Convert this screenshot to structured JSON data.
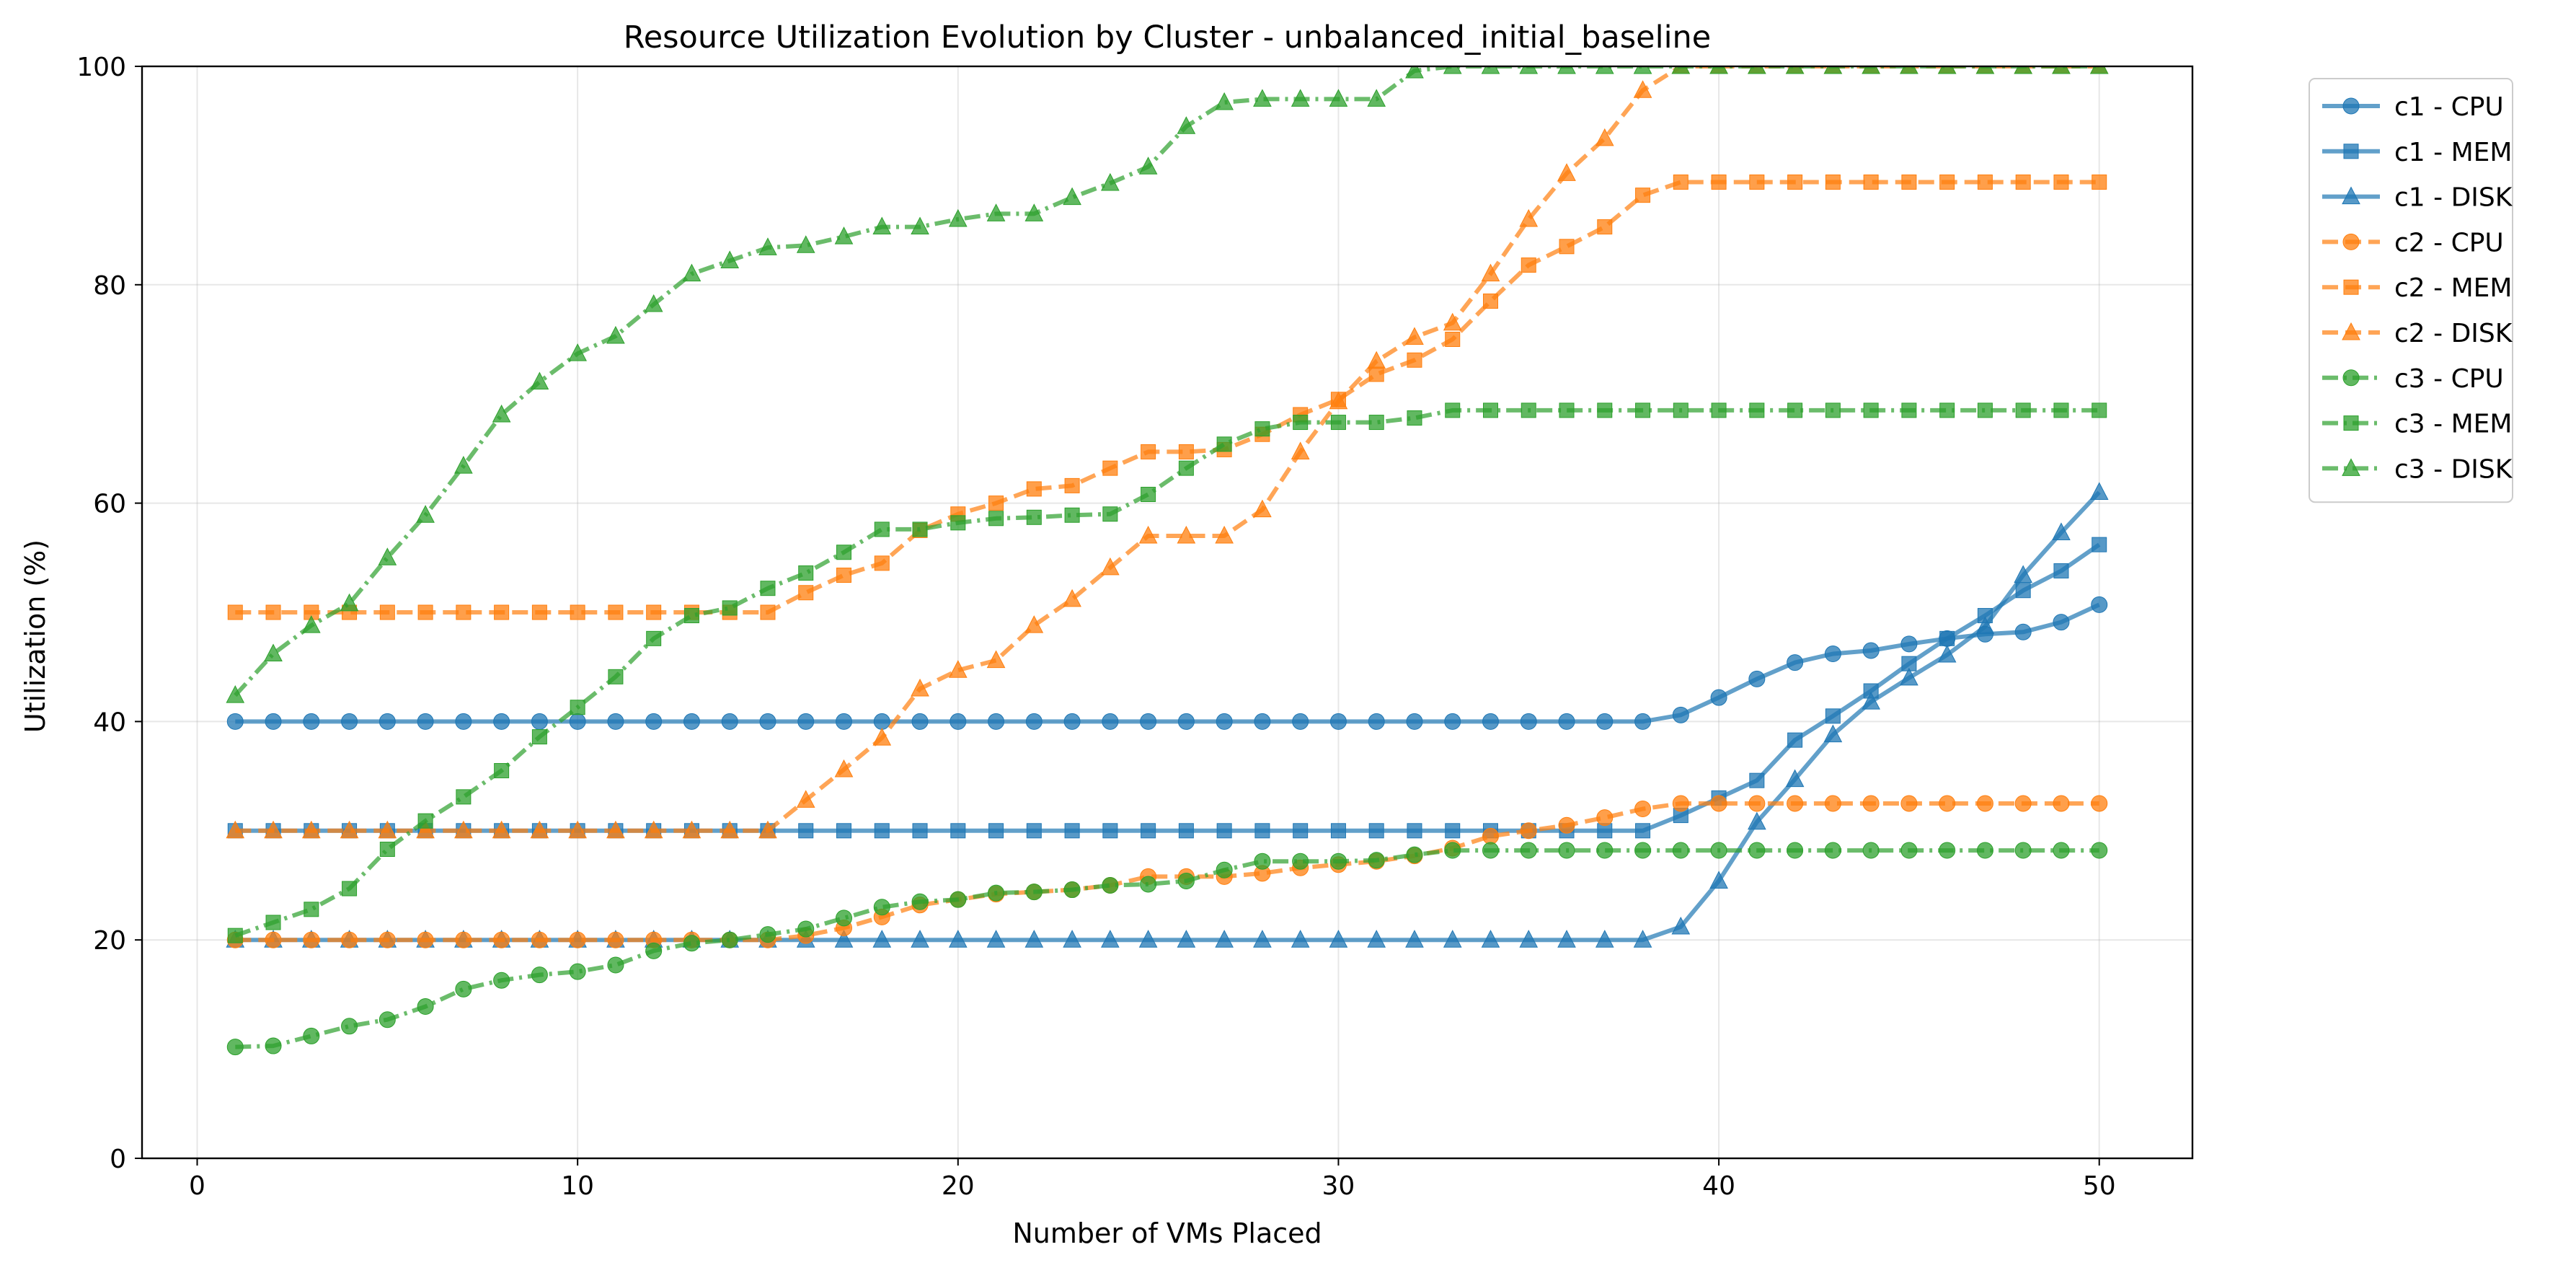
{
  "chart_data": {
    "type": "line",
    "title": "Resource Utilization Evolution by Cluster - unbalanced_initial_baseline",
    "xlabel": "Number of VMs Placed",
    "ylabel": "Utilization (%)",
    "xlim": [
      -1.45,
      52.45
    ],
    "ylim": [
      0,
      100
    ],
    "xticks": [
      0,
      10,
      20,
      30,
      40,
      50
    ],
    "yticks": [
      0,
      20,
      40,
      60,
      80,
      100
    ],
    "grid": true,
    "legend_position": "outside-top-right",
    "x": [
      1,
      2,
      3,
      4,
      5,
      6,
      7,
      8,
      9,
      10,
      11,
      12,
      13,
      14,
      15,
      16,
      17,
      18,
      19,
      20,
      21,
      22,
      23,
      24,
      25,
      26,
      27,
      28,
      29,
      30,
      31,
      32,
      33,
      34,
      35,
      36,
      37,
      38,
      39,
      40,
      41,
      42,
      43,
      44,
      45,
      46,
      47,
      48,
      49,
      50
    ],
    "series": [
      {
        "name": "c1 - CPU",
        "color": "#1f77b4",
        "linestyle": "solid",
        "marker": "circle",
        "values": [
          40,
          40,
          40,
          40,
          40,
          40,
          40,
          40,
          40,
          40,
          40,
          40,
          40,
          40,
          40,
          40,
          40,
          40,
          40,
          40,
          40,
          40,
          40,
          40,
          40,
          40,
          40,
          40,
          40,
          40,
          40,
          40,
          40,
          40,
          40,
          40,
          40,
          40,
          40.6,
          42.2,
          43.9,
          45.4,
          46.2,
          46.5,
          47.1,
          47.6,
          48,
          48.2,
          49.1,
          50.7
        ]
      },
      {
        "name": "c1 - MEM",
        "color": "#1f77b4",
        "linestyle": "solid",
        "marker": "square",
        "values": [
          30,
          30,
          30,
          30,
          30,
          30,
          30,
          30,
          30,
          30,
          30,
          30,
          30,
          30,
          30,
          30,
          30,
          30,
          30,
          30,
          30,
          30,
          30,
          30,
          30,
          30,
          30,
          30,
          30,
          30,
          30,
          30,
          30,
          30,
          30,
          30,
          30,
          30,
          31.4,
          33,
          34.6,
          38.3,
          40.5,
          42.8,
          45.3,
          47.6,
          49.7,
          52,
          53.8,
          56.2
        ]
      },
      {
        "name": "c1 - DISK",
        "color": "#1f77b4",
        "linestyle": "solid",
        "marker": "triangle",
        "values": [
          20,
          20,
          20,
          20,
          20,
          20,
          20,
          20,
          20,
          20,
          20,
          20,
          20,
          20,
          20,
          20,
          20,
          20,
          20,
          20,
          20,
          20,
          20,
          20,
          20,
          20,
          20,
          20,
          20,
          20,
          20,
          20,
          20,
          20,
          20,
          20,
          20,
          20,
          21.2,
          25.4,
          30.8,
          34.7,
          38.8,
          41.8,
          44,
          46.1,
          48.7,
          53.4,
          57.3,
          61
        ]
      },
      {
        "name": "c2 - CPU",
        "color": "#ff7f0e",
        "linestyle": "dashed",
        "marker": "circle",
        "values": [
          20,
          20,
          20,
          20,
          20,
          20,
          20,
          20,
          20,
          20,
          20,
          20,
          20,
          20,
          20,
          20.4,
          21.1,
          22.1,
          23.2,
          23.7,
          24.2,
          24.4,
          24.6,
          25,
          25.8,
          25.8,
          25.8,
          26.1,
          26.6,
          26.9,
          27.2,
          27.7,
          28.4,
          29.5,
          30,
          30.5,
          31.2,
          32,
          32.5,
          32.5,
          32.5,
          32.5,
          32.5,
          32.5,
          32.5,
          32.5,
          32.5,
          32.5,
          32.5,
          32.5
        ]
      },
      {
        "name": "c2 - MEM",
        "color": "#ff7f0e",
        "linestyle": "dashed",
        "marker": "square",
        "values": [
          50,
          50,
          50,
          50,
          50,
          50,
          50,
          50,
          50,
          50,
          50,
          50,
          50,
          50,
          50,
          51.8,
          53.4,
          54.5,
          57.5,
          59,
          60,
          61.3,
          61.6,
          63.2,
          64.7,
          64.7,
          64.9,
          66.3,
          68.1,
          69.5,
          71.8,
          73.1,
          75,
          78.5,
          81.8,
          83.5,
          85.3,
          88.2,
          89.4,
          89.4,
          89.4,
          89.4,
          89.4,
          89.4,
          89.4,
          89.4,
          89.4,
          89.4,
          89.4,
          89.4
        ]
      },
      {
        "name": "c2 - DISK",
        "color": "#ff7f0e",
        "linestyle": "dashed",
        "marker": "triangle",
        "values": [
          30,
          30,
          30,
          30,
          30,
          30,
          30,
          30,
          30,
          30,
          30,
          30,
          30,
          30,
          30,
          32.8,
          35.6,
          38.5,
          43,
          44.7,
          45.6,
          48.8,
          51.2,
          54.1,
          57,
          57,
          57,
          59.4,
          64.7,
          69.3,
          73,
          75.2,
          76.5,
          81,
          86,
          90.2,
          93.4,
          97.8,
          100,
          100,
          100,
          100,
          100,
          100,
          100,
          100,
          100,
          100,
          100,
          100
        ]
      },
      {
        "name": "c3 - CPU",
        "color": "#2ca02c",
        "linestyle": "dashdot",
        "marker": "circle",
        "values": [
          10.2,
          10.3,
          11.2,
          12.1,
          12.7,
          13.9,
          15.5,
          16.3,
          16.8,
          17.1,
          17.7,
          19,
          19.7,
          20,
          20.5,
          21,
          22,
          23,
          23.5,
          23.7,
          24.3,
          24.4,
          24.6,
          25,
          25.1,
          25.4,
          26.4,
          27.2,
          27.2,
          27.2,
          27.3,
          27.8,
          28.2,
          28.2,
          28.2,
          28.2,
          28.2,
          28.2,
          28.2,
          28.2,
          28.2,
          28.2,
          28.2,
          28.2,
          28.2,
          28.2,
          28.2,
          28.2,
          28.2,
          28.2
        ]
      },
      {
        "name": "c3 - MEM",
        "color": "#2ca02c",
        "linestyle": "dashdot",
        "marker": "square",
        "values": [
          20.4,
          21.6,
          22.8,
          24.7,
          28.3,
          30.9,
          33.1,
          35.5,
          38.6,
          41.3,
          44.1,
          47.6,
          49.7,
          50.4,
          52.2,
          53.6,
          55.5,
          57.6,
          57.6,
          58.2,
          58.6,
          58.7,
          58.9,
          59,
          60.8,
          63.2,
          65.4,
          66.8,
          67.4,
          67.4,
          67.4,
          67.8,
          68.5,
          68.5,
          68.5,
          68.5,
          68.5,
          68.5,
          68.5,
          68.5,
          68.5,
          68.5,
          68.5,
          68.5,
          68.5,
          68.5,
          68.5,
          68.5,
          68.5,
          68.5
        ]
      },
      {
        "name": "c3 - DISK",
        "color": "#2ca02c",
        "linestyle": "dashdot",
        "marker": "triangle",
        "values": [
          42.4,
          46.2,
          48.8,
          50.8,
          55,
          58.9,
          63.4,
          68.1,
          71.1,
          73.7,
          75.3,
          78.2,
          81,
          82.2,
          83.4,
          83.6,
          84.4,
          85.3,
          85.3,
          86,
          86.5,
          86.5,
          88,
          89.3,
          90.8,
          94.5,
          96.7,
          97,
          97,
          97,
          97,
          99.6,
          100,
          100,
          100,
          100,
          100,
          100,
          100,
          100,
          100,
          100,
          100,
          100,
          100,
          100,
          100,
          100,
          100,
          100
        ]
      }
    ]
  }
}
